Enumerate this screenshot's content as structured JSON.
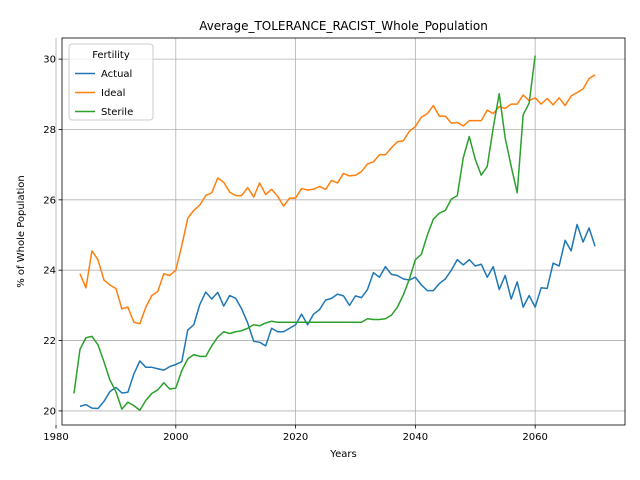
{
  "chart_data": {
    "type": "line",
    "title": "Average_TOLERANCE_RACIST_Whole_Population",
    "xlabel": "Years",
    "ylabel": "% of Whole Population",
    "xlim": [
      1981,
      2075
    ],
    "ylim": [
      19.6,
      30.6
    ],
    "xticks": [
      1980,
      2000,
      2020,
      2040,
      2060
    ],
    "yticks": [
      20,
      22,
      24,
      26,
      28,
      30
    ],
    "grid": true,
    "legend": {
      "title": "Fertility",
      "position": "top-left"
    },
    "series": [
      {
        "name": "Actual",
        "color": "#1f77b4",
        "x": [
          1984,
          1985,
          1986,
          1987,
          1988,
          1989,
          1990,
          1991,
          1992,
          1993,
          1994,
          1995,
          1996,
          1997,
          1998,
          1999,
          2000,
          2001,
          2002,
          2003,
          2004,
          2005,
          2006,
          2007,
          2008,
          2009,
          2010,
          2011,
          2012,
          2013,
          2014,
          2015,
          2016,
          2017,
          2018,
          2019,
          2020,
          2021,
          2022,
          2023,
          2024,
          2025,
          2026,
          2027,
          2028,
          2029,
          2030,
          2031,
          2032,
          2033,
          2034,
          2035,
          2036,
          2037,
          2038,
          2039,
          2040,
          2041,
          2042,
          2043,
          2044,
          2045,
          2046,
          2047,
          2048,
          2049,
          2050,
          2051,
          2052,
          2053,
          2054,
          2055,
          2056,
          2057,
          2058,
          2059,
          2060,
          2061,
          2062,
          2063,
          2064,
          2065,
          2066,
          2067,
          2068,
          2069,
          2070
        ],
        "values": [
          20.13,
          20.18,
          20.08,
          20.07,
          20.27,
          20.55,
          20.67,
          20.51,
          20.53,
          21.05,
          21.42,
          21.24,
          21.24,
          21.2,
          21.16,
          21.26,
          21.32,
          21.4,
          22.3,
          22.45,
          23.02,
          23.38,
          23.18,
          23.37,
          22.98,
          23.28,
          23.2,
          22.9,
          22.5,
          21.98,
          21.95,
          21.85,
          22.35,
          22.25,
          22.25,
          22.35,
          22.45,
          22.75,
          22.45,
          22.75,
          22.88,
          23.15,
          23.2,
          23.32,
          23.27,
          23.0,
          23.27,
          23.22,
          23.45,
          23.93,
          23.8,
          24.1,
          23.88,
          23.85,
          23.75,
          23.72,
          23.8,
          23.58,
          23.42,
          23.42,
          23.62,
          23.75,
          24.0,
          24.3,
          24.15,
          24.3,
          24.12,
          24.17,
          23.8,
          24.1,
          23.45,
          23.85,
          23.18,
          23.67,
          22.95,
          23.28,
          22.95,
          23.5,
          23.48,
          24.2,
          24.12,
          24.85,
          24.55,
          25.3,
          24.8,
          25.2,
          24.68
        ]
      },
      {
        "name": "Ideal",
        "color": "#ff7f0e",
        "x": [
          1984,
          1985,
          1986,
          1987,
          1988,
          1989,
          1990,
          1991,
          1992,
          1993,
          1994,
          1995,
          1996,
          1997,
          1998,
          1999,
          2000,
          2001,
          2002,
          2003,
          2004,
          2005,
          2006,
          2007,
          2008,
          2009,
          2010,
          2011,
          2012,
          2013,
          2014,
          2015,
          2016,
          2017,
          2018,
          2019,
          2020,
          2021,
          2022,
          2023,
          2024,
          2025,
          2026,
          2027,
          2028,
          2029,
          2030,
          2031,
          2032,
          2033,
          2034,
          2035,
          2036,
          2037,
          2038,
          2039,
          2040,
          2041,
          2042,
          2043,
          2044,
          2045,
          2046,
          2047,
          2048,
          2049,
          2050,
          2051,
          2052,
          2053,
          2054,
          2055,
          2056,
          2057,
          2058,
          2059,
          2060,
          2061,
          2062,
          2063,
          2064,
          2065,
          2066,
          2067,
          2068,
          2069,
          2070
        ],
        "values": [
          23.9,
          23.5,
          24.55,
          24.3,
          23.72,
          23.58,
          23.48,
          22.9,
          22.95,
          22.52,
          22.48,
          22.95,
          23.28,
          23.4,
          23.9,
          23.85,
          24.0,
          24.7,
          25.48,
          25.7,
          25.85,
          26.12,
          26.2,
          26.62,
          26.5,
          26.22,
          26.12,
          26.12,
          26.35,
          26.08,
          26.48,
          26.15,
          26.3,
          26.1,
          25.82,
          26.05,
          26.05,
          26.32,
          26.28,
          26.3,
          26.38,
          26.3,
          26.55,
          26.48,
          26.75,
          26.68,
          26.7,
          26.8,
          27.02,
          27.08,
          27.28,
          27.28,
          27.48,
          27.65,
          27.68,
          27.95,
          28.08,
          28.35,
          28.45,
          28.68,
          28.38,
          28.38,
          28.18,
          28.2,
          28.1,
          28.25,
          28.25,
          28.25,
          28.55,
          28.45,
          28.65,
          28.6,
          28.72,
          28.72,
          28.98,
          28.82,
          28.9,
          28.72,
          28.88,
          28.7,
          28.9,
          28.68,
          28.95,
          29.05,
          29.15,
          29.45,
          29.55
        ]
      },
      {
        "name": "Sterile",
        "color": "#2ca02c",
        "x": [
          1983,
          1984,
          1985,
          1986,
          1987,
          1988,
          1989,
          1990,
          1991,
          1992,
          1993,
          1994,
          1995,
          1996,
          1997,
          1998,
          1999,
          2000,
          2001,
          2002,
          2003,
          2004,
          2005,
          2006,
          2007,
          2008,
          2009,
          2010,
          2011,
          2012,
          2013,
          2014,
          2015,
          2016,
          2017,
          2018,
          2019,
          2020,
          2021,
          2022,
          2023,
          2024,
          2025,
          2026,
          2027,
          2028,
          2029,
          2030,
          2031,
          2032,
          2033,
          2034,
          2035,
          2036,
          2037,
          2038,
          2039,
          2040,
          2041,
          2042,
          2043,
          2044,
          2045,
          2046,
          2047,
          2048,
          2049,
          2050,
          2051,
          2052,
          2053,
          2054,
          2055,
          2056,
          2057,
          2058,
          2059,
          2060
        ],
        "values": [
          20.5,
          21.75,
          22.08,
          22.12,
          21.88,
          21.4,
          20.88,
          20.55,
          20.05,
          20.25,
          20.15,
          20.02,
          20.3,
          20.5,
          20.6,
          20.8,
          20.62,
          20.65,
          21.15,
          21.48,
          21.6,
          21.55,
          21.55,
          21.85,
          22.1,
          22.25,
          22.2,
          22.25,
          22.28,
          22.35,
          22.45,
          22.42,
          22.5,
          22.55,
          22.52,
          22.52,
          22.52,
          22.52,
          22.52,
          22.52,
          22.52,
          22.52,
          22.52,
          22.52,
          22.52,
          22.52,
          22.52,
          22.52,
          22.52,
          22.62,
          22.6,
          22.6,
          22.62,
          22.72,
          22.95,
          23.3,
          23.75,
          24.3,
          24.45,
          25.0,
          25.45,
          25.62,
          25.7,
          26.02,
          26.12,
          27.2,
          27.8,
          27.15,
          26.7,
          26.95,
          28.05,
          29.02,
          27.75,
          26.95,
          26.2,
          28.42,
          28.75,
          30.1
        ]
      }
    ]
  }
}
